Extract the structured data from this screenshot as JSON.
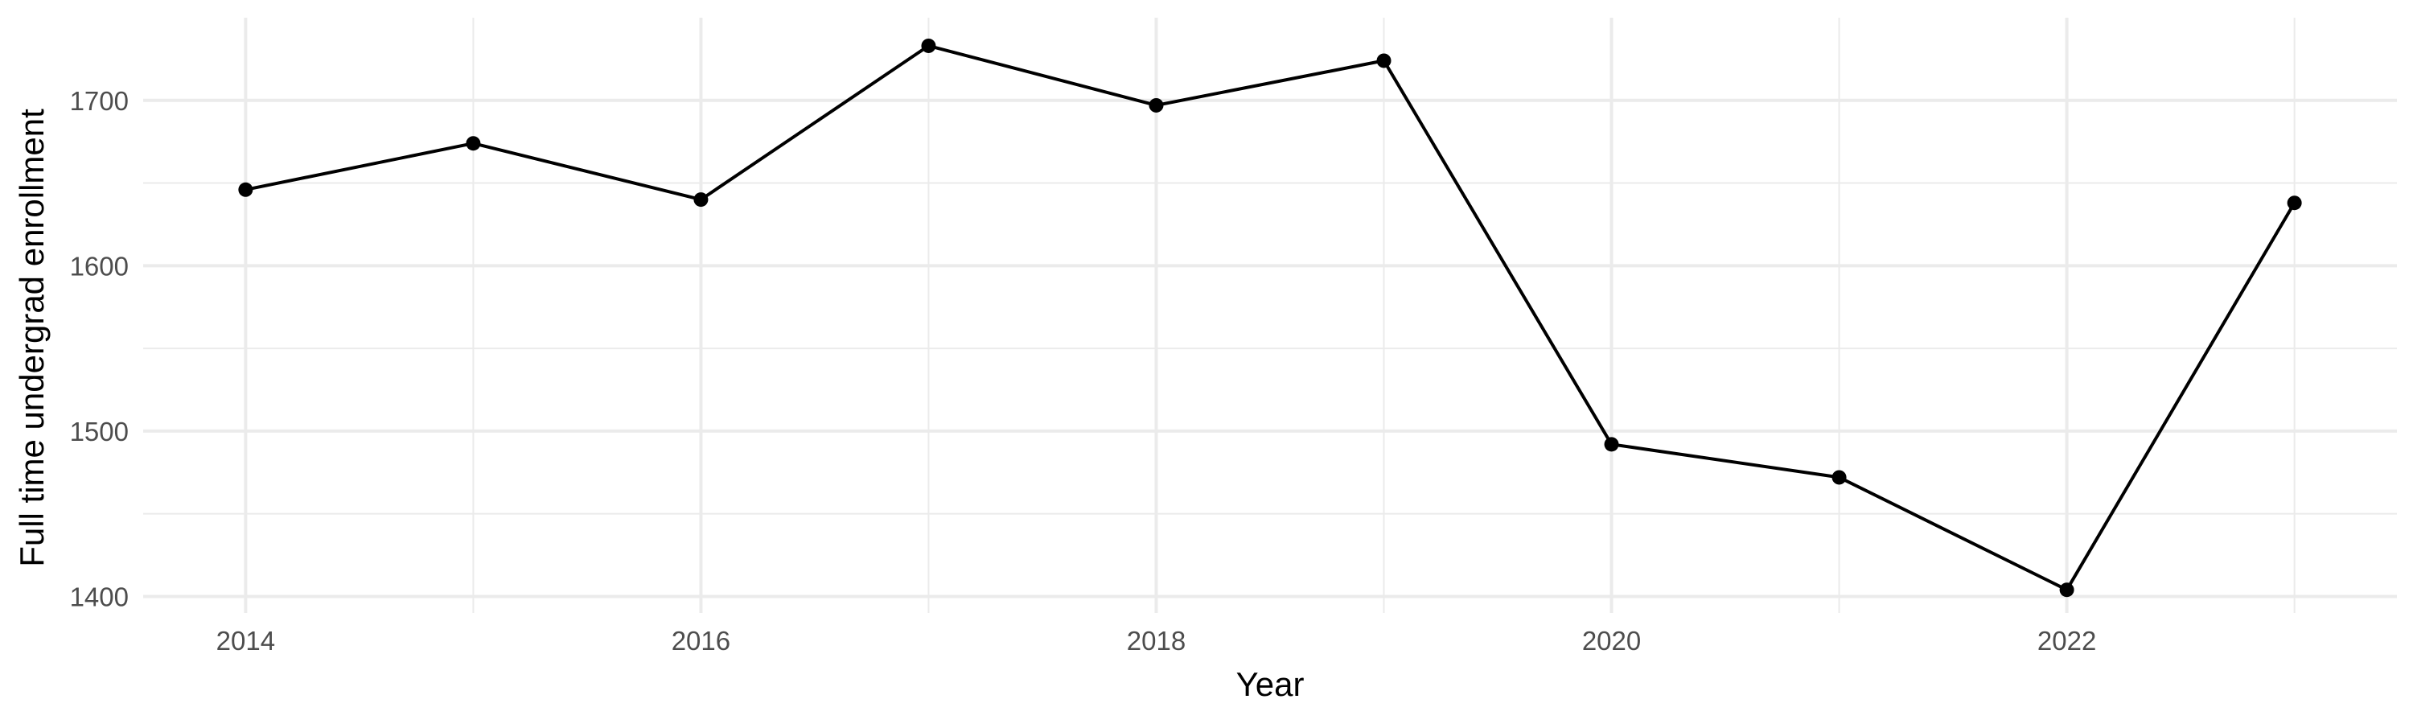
{
  "chart_data": {
    "type": "line",
    "title": "",
    "xlabel": "Year",
    "ylabel": "Full time undergrad enrollment",
    "x": [
      2014,
      2015,
      2016,
      2017,
      2018,
      2019,
      2020,
      2021,
      2022,
      2023
    ],
    "series": [
      {
        "values": [
          1646,
          1674,
          1640,
          1733,
          1697,
          1724,
          1492,
          1472,
          1404,
          1638
        ]
      }
    ],
    "xlim": [
      2013.55,
      2023.45
    ],
    "ylim": [
      1390,
      1750
    ],
    "x_ticks": [
      2014,
      2016,
      2018,
      2020,
      2022
    ],
    "x_tick_labels": [
      "2014",
      "2016",
      "2018",
      "2020",
      "2022"
    ],
    "y_ticks": [
      1400,
      1500,
      1600,
      1700
    ],
    "y_tick_labels": [
      "1400",
      "1500",
      "1600",
      "1700"
    ],
    "grid": true,
    "legend": "none",
    "colors": {
      "line": "#000000",
      "points": "#000000",
      "grid": "#ebebeb",
      "background": "#ffffff"
    }
  }
}
